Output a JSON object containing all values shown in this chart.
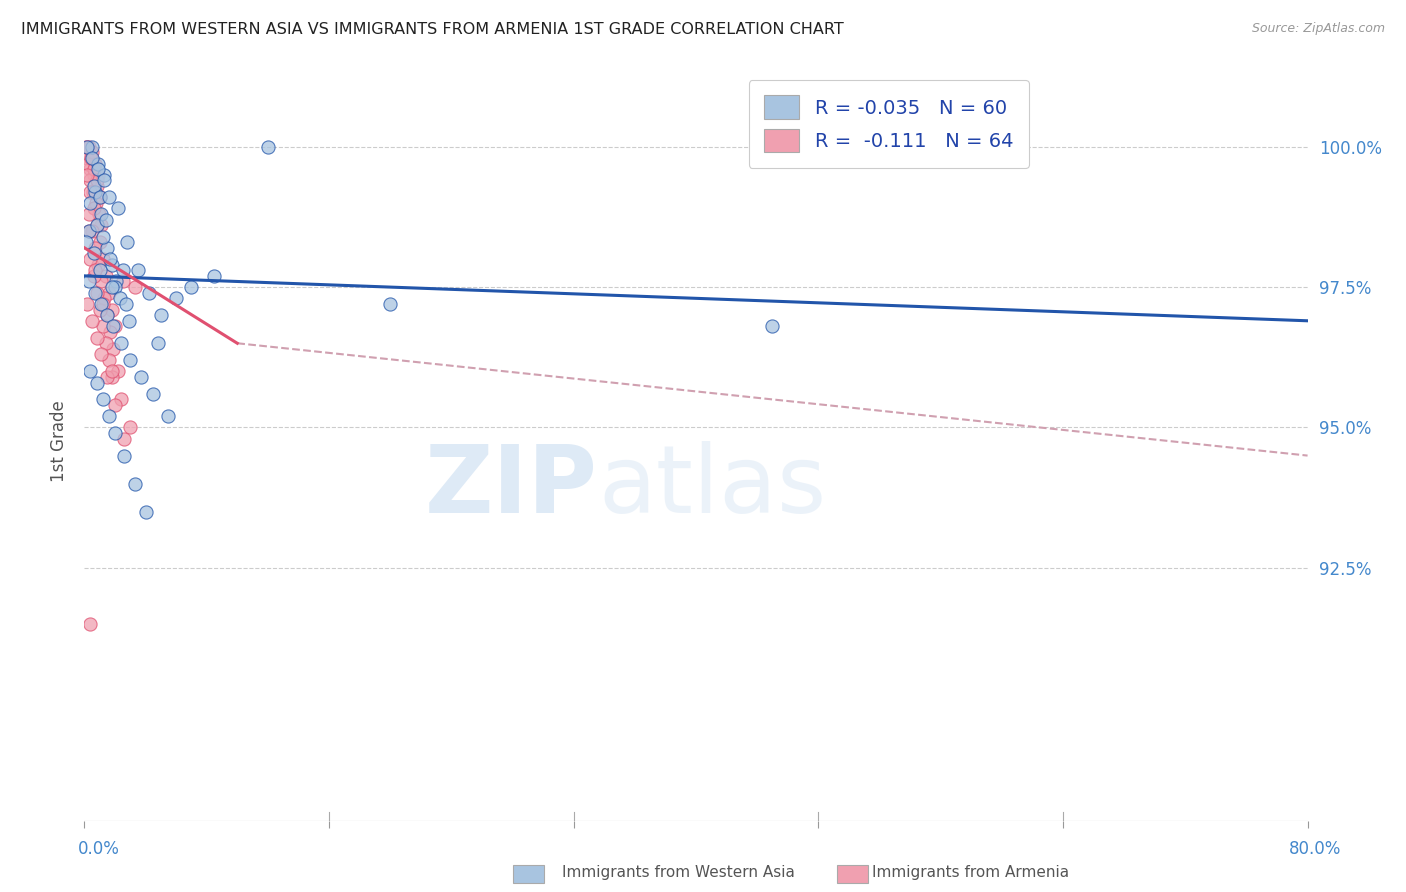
{
  "title": "IMMIGRANTS FROM WESTERN ASIA VS IMMIGRANTS FROM ARMENIA 1ST GRADE CORRELATION CHART",
  "source": "Source: ZipAtlas.com",
  "ylabel": "1st Grade",
  "ytick_labels": [
    "92.5%",
    "95.0%",
    "97.5%",
    "100.0%"
  ],
  "ytick_values": [
    92.5,
    95.0,
    97.5,
    100.0
  ],
  "xlim": [
    0.0,
    80.0
  ],
  "ylim": [
    88.0,
    101.5
  ],
  "legend_r1": "-0.035",
  "legend_n1": "60",
  "legend_r2": "-0.111",
  "legend_n2": "64",
  "color_blue": "#A8C4E0",
  "color_pink": "#F0A0B0",
  "color_blue_line": "#2255AA",
  "color_pink_line": "#E05070",
  "color_dashed_line": "#D0A0B0",
  "watermark_zip": "ZIP",
  "watermark_atlas": "atlas",
  "blue_scatter_x": [
    0.3,
    0.5,
    0.7,
    0.9,
    1.1,
    1.3,
    1.5,
    1.8,
    2.1,
    2.5,
    0.4,
    0.6,
    0.8,
    1.0,
    1.2,
    1.4,
    1.7,
    2.0,
    2.3,
    2.7,
    0.2,
    0.5,
    0.9,
    1.3,
    1.6,
    2.2,
    2.8,
    3.5,
    4.2,
    5.0,
    0.3,
    0.7,
    1.1,
    1.5,
    1.9,
    2.4,
    3.0,
    3.7,
    4.5,
    5.5,
    0.4,
    0.8,
    1.2,
    1.6,
    2.0,
    2.6,
    3.3,
    4.0,
    6.0,
    7.0,
    0.1,
    0.6,
    1.0,
    1.8,
    2.9,
    4.8,
    8.5,
    12.0,
    20.0,
    45.0
  ],
  "blue_scatter_y": [
    98.5,
    100.0,
    99.2,
    99.7,
    98.8,
    99.5,
    98.2,
    97.9,
    97.6,
    97.8,
    99.0,
    99.3,
    98.6,
    99.1,
    98.4,
    98.7,
    98.0,
    97.5,
    97.3,
    97.2,
    100.0,
    99.8,
    99.6,
    99.4,
    99.1,
    98.9,
    98.3,
    97.8,
    97.4,
    97.0,
    97.6,
    97.4,
    97.2,
    97.0,
    96.8,
    96.5,
    96.2,
    95.9,
    95.6,
    95.2,
    96.0,
    95.8,
    95.5,
    95.2,
    94.9,
    94.5,
    94.0,
    93.5,
    97.3,
    97.5,
    98.3,
    98.1,
    97.8,
    97.5,
    96.9,
    96.5,
    97.7,
    100.0,
    97.2,
    96.8
  ],
  "pink_scatter_x": [
    0.1,
    0.2,
    0.3,
    0.4,
    0.5,
    0.6,
    0.7,
    0.8,
    0.9,
    1.0,
    0.15,
    0.25,
    0.35,
    0.45,
    0.55,
    0.65,
    0.75,
    0.85,
    0.95,
    1.1,
    0.2,
    0.4,
    0.6,
    0.8,
    1.0,
    1.2,
    1.4,
    1.6,
    1.8,
    2.0,
    0.3,
    0.5,
    0.7,
    0.9,
    1.1,
    1.3,
    1.5,
    1.7,
    1.9,
    2.2,
    0.4,
    0.6,
    0.8,
    1.0,
    1.2,
    1.4,
    1.6,
    1.8,
    2.4,
    3.0,
    0.2,
    0.5,
    0.8,
    1.1,
    1.5,
    2.0,
    2.6,
    3.3,
    0.3,
    0.7,
    1.2,
    2.5,
    0.4,
    1.8
  ],
  "pink_scatter_y": [
    100.0,
    99.8,
    100.0,
    99.6,
    99.9,
    99.5,
    99.7,
    99.3,
    99.5,
    99.1,
    100.0,
    99.7,
    99.4,
    99.8,
    99.2,
    99.6,
    99.0,
    99.4,
    98.8,
    98.6,
    99.5,
    99.2,
    98.9,
    98.6,
    98.3,
    98.0,
    97.7,
    97.4,
    97.1,
    96.8,
    98.8,
    98.5,
    98.2,
    97.9,
    97.6,
    97.3,
    97.0,
    96.7,
    96.4,
    96.0,
    98.0,
    97.7,
    97.4,
    97.1,
    96.8,
    96.5,
    96.2,
    95.9,
    95.5,
    95.0,
    97.2,
    96.9,
    96.6,
    96.3,
    95.9,
    95.4,
    94.8,
    97.5,
    98.5,
    97.8,
    97.2,
    97.6,
    91.5,
    96.0
  ],
  "blue_line_x0": 0.0,
  "blue_line_y0": 97.7,
  "blue_line_x1": 80.0,
  "blue_line_y1": 96.9,
  "pink_solid_x0": 0.0,
  "pink_solid_y0": 98.2,
  "pink_solid_x1": 10.0,
  "pink_solid_y1": 96.5,
  "pink_dash_x0": 10.0,
  "pink_dash_y0": 96.5,
  "pink_dash_x1": 80.0,
  "pink_dash_y1": 94.5
}
